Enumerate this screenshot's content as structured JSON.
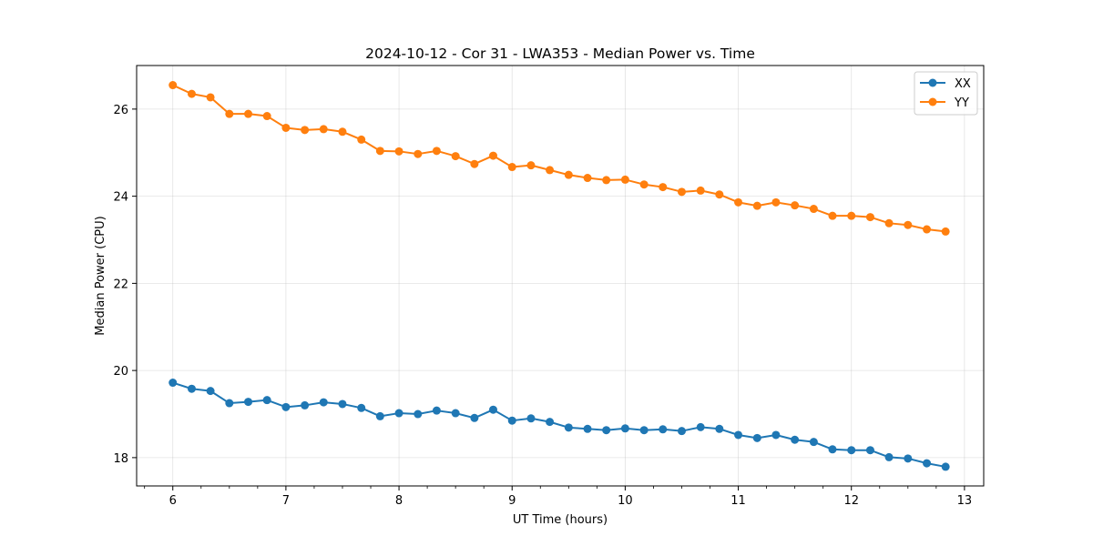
{
  "chart_data": {
    "type": "line",
    "title": "2024-10-12 - Cor 31 - LWA353 - Median Power vs. Time",
    "xlabel": "UT Time (hours)",
    "ylabel": "Median Power (CPU)",
    "xlim": [
      5.68,
      13.17
    ],
    "ylim": [
      17.35,
      27.0
    ],
    "xticks": [
      6,
      7,
      8,
      9,
      10,
      11,
      12,
      13
    ],
    "xtick_labels": [
      "6",
      "7",
      "8",
      "9",
      "10",
      "11",
      "12",
      "13"
    ],
    "x_minor_step": 0.25,
    "yticks": [
      18,
      20,
      22,
      24,
      26
    ],
    "ytick_labels": [
      "18",
      "20",
      "22",
      "24",
      "26"
    ],
    "grid": true,
    "legend_position": "top-right",
    "x": [
      6.0,
      6.167,
      6.333,
      6.5,
      6.667,
      6.833,
      7.0,
      7.167,
      7.333,
      7.5,
      7.667,
      7.833,
      8.0,
      8.167,
      8.333,
      8.5,
      8.667,
      8.833,
      9.0,
      9.167,
      9.333,
      9.5,
      9.667,
      9.833,
      10.0,
      10.167,
      10.333,
      10.5,
      10.667,
      10.833,
      11.0,
      11.167,
      11.333,
      11.5,
      11.667,
      11.833,
      12.0,
      12.167,
      12.333,
      12.5,
      12.667,
      12.833
    ],
    "series": [
      {
        "name": "XX",
        "color": "#1f77b4",
        "values": [
          19.72,
          19.58,
          19.53,
          19.25,
          19.28,
          19.32,
          19.16,
          19.2,
          19.27,
          19.23,
          19.14,
          18.95,
          19.02,
          19.0,
          19.08,
          19.02,
          18.91,
          19.1,
          18.85,
          18.9,
          18.82,
          18.69,
          18.66,
          18.63,
          18.67,
          18.63,
          18.65,
          18.61,
          18.7,
          18.66,
          18.52,
          18.45,
          18.52,
          18.41,
          18.36,
          18.19,
          18.17,
          18.17,
          18.01,
          17.98,
          17.87,
          17.79
        ]
      },
      {
        "name": "YY",
        "color": "#ff7f0e",
        "values": [
          26.55,
          26.35,
          26.27,
          25.89,
          25.89,
          25.84,
          25.57,
          25.52,
          25.54,
          25.48,
          25.3,
          25.04,
          25.03,
          24.97,
          25.04,
          24.92,
          24.74,
          24.93,
          24.67,
          24.71,
          24.6,
          24.49,
          24.42,
          24.37,
          24.38,
          24.27,
          24.21,
          24.1,
          24.13,
          24.04,
          23.86,
          23.78,
          23.86,
          23.79,
          23.71,
          23.55,
          23.55,
          23.52,
          23.38,
          23.34,
          23.24,
          23.19
        ]
      }
    ]
  }
}
